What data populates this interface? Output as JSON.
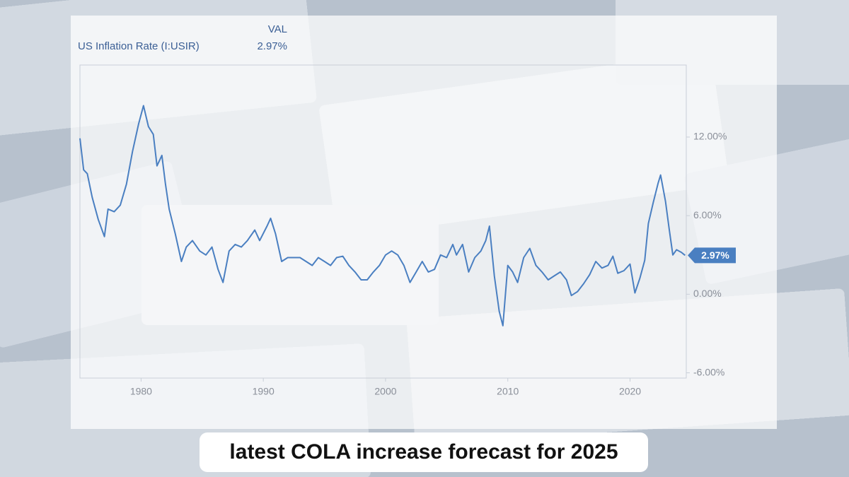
{
  "chart_data": {
    "type": "line",
    "legend_header": "VAL",
    "current_value": {
      "value": 2.97,
      "label": "2.97%"
    },
    "caption": "latest COLA increase forecast for 2025",
    "x": [
      1975.0,
      1975.3,
      1975.6,
      1976.0,
      1976.5,
      1977.0,
      1977.3,
      1977.8,
      1978.3,
      1978.8,
      1979.3,
      1979.8,
      1980.2,
      1980.6,
      1981.0,
      1981.3,
      1981.7,
      1982.0,
      1982.3,
      1982.8,
      1983.3,
      1983.7,
      1984.2,
      1984.8,
      1985.3,
      1985.8,
      1986.3,
      1986.7,
      1987.2,
      1987.7,
      1988.2,
      1988.7,
      1989.3,
      1989.7,
      1990.3,
      1990.6,
      1991.0,
      1991.5,
      1992.0,
      1992.5,
      1993.0,
      1993.5,
      1994.0,
      1994.5,
      1995.0,
      1995.5,
      1996.0,
      1996.5,
      1997.0,
      1997.5,
      1998.0,
      1998.5,
      1999.0,
      1999.5,
      2000.0,
      2000.5,
      2001.0,
      2001.5,
      2002.0,
      2002.5,
      2003.0,
      2003.5,
      2004.0,
      2004.5,
      2005.0,
      2005.5,
      2005.8,
      2006.3,
      2006.8,
      2007.3,
      2007.8,
      2008.2,
      2008.5,
      2008.9,
      2009.3,
      2009.6,
      2010.0,
      2010.4,
      2010.8,
      2011.3,
      2011.8,
      2012.3,
      2012.8,
      2013.3,
      2013.8,
      2014.3,
      2014.8,
      2015.2,
      2015.7,
      2016.2,
      2016.7,
      2017.2,
      2017.7,
      2018.2,
      2018.6,
      2019.0,
      2019.5,
      2020.0,
      2020.4,
      2020.8,
      2021.2,
      2021.5,
      2021.9,
      2022.3,
      2022.5,
      2022.9,
      2023.2,
      2023.5,
      2023.8,
      2024.2,
      2024.5
    ],
    "series": [
      {
        "name": "US Inflation Rate (I:USIR)",
        "color": "#4a7fc1",
        "values": [
          11.9,
          9.5,
          9.2,
          7.4,
          5.7,
          4.4,
          6.5,
          6.3,
          6.8,
          8.4,
          10.9,
          13.0,
          14.4,
          12.8,
          12.2,
          9.8,
          10.6,
          8.4,
          6.5,
          4.6,
          2.5,
          3.6,
          4.1,
          3.3,
          3.0,
          3.6,
          1.9,
          0.9,
          3.3,
          3.8,
          3.6,
          4.1,
          4.9,
          4.1,
          5.2,
          5.8,
          4.6,
          2.5,
          2.8,
          2.8,
          2.8,
          2.5,
          2.2,
          2.8,
          2.5,
          2.2,
          2.8,
          2.9,
          2.2,
          1.7,
          1.1,
          1.1,
          1.7,
          2.2,
          3.0,
          3.3,
          3.0,
          2.2,
          0.9,
          1.7,
          2.5,
          1.7,
          1.9,
          3.0,
          2.8,
          3.8,
          3.0,
          3.8,
          1.7,
          2.8,
          3.3,
          4.1,
          5.2,
          1.4,
          -1.3,
          -2.4,
          2.2,
          1.7,
          0.9,
          2.8,
          3.5,
          2.2,
          1.7,
          1.1,
          1.4,
          1.7,
          1.1,
          -0.1,
          0.2,
          0.8,
          1.5,
          2.5,
          2.0,
          2.2,
          2.9,
          1.6,
          1.8,
          2.3,
          0.1,
          1.2,
          2.6,
          5.4,
          7.0,
          8.5,
          9.1,
          7.1,
          5.0,
          3.0,
          3.4,
          3.2,
          2.97
        ]
      }
    ],
    "xlim": [
      1975,
      2024.6
    ],
    "xticks": [
      1980,
      1990,
      2000,
      2010,
      2020
    ],
    "ylim": [
      -6.4,
      17.5
    ],
    "yticks": [
      {
        "value": -6,
        "label": "-6.00%"
      },
      {
        "value": 0,
        "label": "0.00%"
      },
      {
        "value": 6,
        "label": "6.00%"
      },
      {
        "value": 12,
        "label": "12.00%"
      }
    ]
  }
}
